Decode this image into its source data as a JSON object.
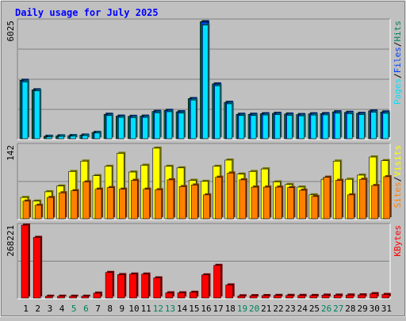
{
  "title": "Daily usage for July 2025",
  "colors": {
    "background": "#c0c0c0",
    "title": "#0000ff",
    "pages": "#00e0ff",
    "files": "#0040ff",
    "hits": "#00805c",
    "visits": "#ffff00",
    "sites": "#ff8000",
    "kbytes": "#ff0000",
    "weekend_day": "#00805c",
    "weekday": "#000000"
  },
  "chart_data": [
    {
      "type": "bar",
      "panel": "hits-files-pages",
      "ymax_label": "6025",
      "ylim": [
        0,
        6025
      ],
      "legend": [
        "Pages",
        "/",
        "Files",
        "/",
        "Hits"
      ],
      "categories": [
        "1",
        "2",
        "3",
        "4",
        "5",
        "6",
        "7",
        "8",
        "9",
        "10",
        "11",
        "12",
        "13",
        "14",
        "15",
        "16",
        "17",
        "18",
        "19",
        "20",
        "21",
        "22",
        "23",
        "24",
        "25",
        "26",
        "27",
        "28",
        "29",
        "30",
        "31"
      ],
      "series": [
        {
          "name": "Hits",
          "values": [
            2980,
            2495,
            125,
            145,
            155,
            185,
            320,
            1245,
            1150,
            1140,
            1150,
            1390,
            1445,
            1375,
            2045,
            5970,
            2795,
            1855,
            1245,
            1245,
            1275,
            1295,
            1260,
            1230,
            1270,
            1280,
            1370,
            1345,
            1295,
            1420,
            1365
          ]
        },
        {
          "name": "Files",
          "values": [
            2960,
            2480,
            115,
            140,
            150,
            180,
            310,
            1235,
            1140,
            1130,
            1140,
            1380,
            1435,
            1365,
            2035,
            5950,
            2780,
            1840,
            1235,
            1235,
            1265,
            1285,
            1250,
            1220,
            1260,
            1270,
            1360,
            1335,
            1285,
            1410,
            1355
          ]
        },
        {
          "name": "Pages",
          "values": [
            2900,
            2440,
            90,
            120,
            130,
            160,
            290,
            1180,
            1090,
            1080,
            1090,
            1320,
            1375,
            1305,
            1975,
            5800,
            2700,
            1780,
            1180,
            1180,
            1210,
            1230,
            1195,
            1165,
            1205,
            1215,
            1300,
            1275,
            1230,
            1350,
            1295
          ]
        }
      ]
    },
    {
      "type": "bar",
      "panel": "visits-sites",
      "ymax_label": "142",
      "ylim": [
        0,
        142
      ],
      "legend": [
        "Sites",
        "/",
        "Visits"
      ],
      "categories": [
        "1",
        "2",
        "3",
        "4",
        "5",
        "6",
        "7",
        "8",
        "9",
        "10",
        "11",
        "12",
        "13",
        "14",
        "15",
        "16",
        "17",
        "18",
        "19",
        "20",
        "21",
        "22",
        "23",
        "24",
        "25",
        "26",
        "27",
        "28",
        "29",
        "30",
        "31"
      ],
      "series": [
        {
          "name": "Visits",
          "values": [
            41,
            34,
            52,
            63,
            91,
            111,
            83,
            101,
            126,
            90,
            103,
            136,
            101,
            98,
            74,
            72,
            101,
            113,
            86,
            91,
            96,
            71,
            66,
            61,
            46,
            76,
            111,
            76,
            84,
            119,
            112
          ]
        },
        {
          "name": "Sites",
          "values": [
            34,
            26,
            41,
            50,
            54,
            71,
            57,
            60,
            57,
            74,
            57,
            56,
            75,
            62,
            65,
            46,
            80,
            88,
            75,
            61,
            61,
            61,
            60,
            55,
            43,
            80,
            74,
            46,
            76,
            64,
            81
          ]
        }
      ]
    },
    {
      "type": "bar",
      "panel": "kbytes",
      "ymax_label": "268221",
      "ylim": [
        0,
        268221
      ],
      "legend": [
        "KBytes"
      ],
      "categories": [
        "1",
        "2",
        "3",
        "4",
        "5",
        "6",
        "7",
        "8",
        "9",
        "10",
        "11",
        "12",
        "13",
        "14",
        "15",
        "16",
        "17",
        "18",
        "19",
        "20",
        "21",
        "22",
        "23",
        "24",
        "25",
        "26",
        "27",
        "28",
        "29",
        "30",
        "31"
      ],
      "series": [
        {
          "name": "KBytes",
          "values": [
            268221,
            223000,
            6500,
            6500,
            6500,
            6500,
            18000,
            94000,
            86000,
            88000,
            88000,
            74000,
            19000,
            19000,
            21000,
            85000,
            120000,
            48000,
            8000,
            8500,
            8800,
            9500,
            9500,
            9500,
            9200,
            10500,
            10500,
            11000,
            11500,
            16000,
            13000
          ]
        }
      ]
    }
  ],
  "x_axis": {
    "labels": [
      "1",
      "2",
      "3",
      "4",
      "5",
      "6",
      "7",
      "8",
      "9",
      "10",
      "11",
      "12",
      "13",
      "14",
      "15",
      "16",
      "17",
      "18",
      "19",
      "20",
      "21",
      "22",
      "23",
      "24",
      "25",
      "26",
      "27",
      "28",
      "29",
      "30",
      "31"
    ],
    "weekend": [
      false,
      false,
      false,
      false,
      true,
      true,
      false,
      false,
      false,
      false,
      false,
      true,
      true,
      false,
      false,
      false,
      false,
      false,
      true,
      true,
      false,
      false,
      false,
      false,
      false,
      true,
      true,
      false,
      false,
      false,
      false
    ]
  }
}
